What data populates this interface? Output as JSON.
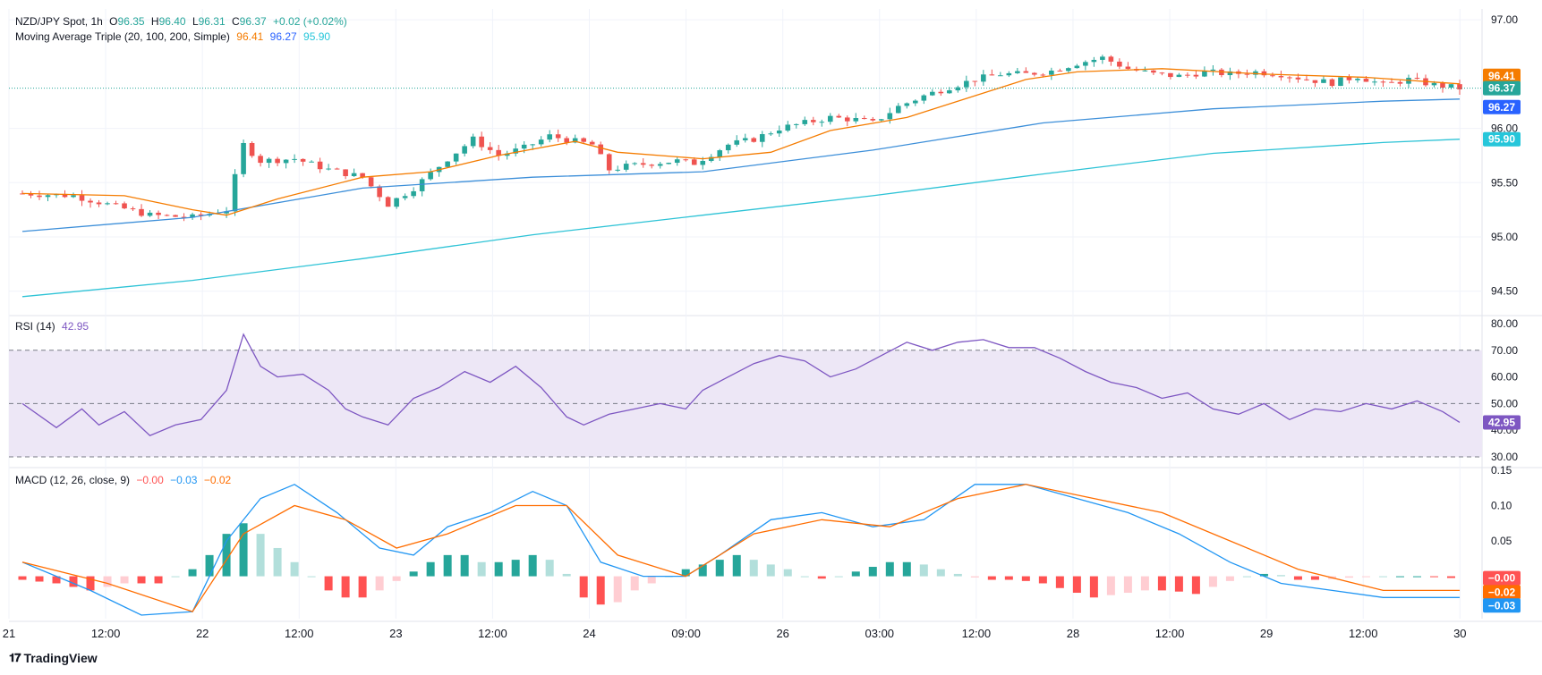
{
  "brand": {
    "name": "TradingView",
    "icon": "tradingview-logo-icon"
  },
  "colors": {
    "up": "#26a69a",
    "down": "#ef5350",
    "ma20": "#f57c00",
    "ma100": "#2962ff",
    "ma200": "#26c6da",
    "ma100_line": "#3d8fd9",
    "ma200_line": "#2ec3d6",
    "rsi": "#7e57c2",
    "rsi_band": "#ede7f6",
    "macd": "#2196f3",
    "signal": "#ff6d00",
    "hist_up_strong": "#26a69a",
    "hist_up_weak": "#b2dfdb",
    "hist_down_strong": "#ff5252",
    "hist_down_weak": "#ffcdd2",
    "grid": "#f0f3fa",
    "axis_text": "#131722"
  },
  "main_pane": {
    "legend": {
      "symbol": "NZD/JPY Spot, 1h",
      "o_label": "O",
      "o": "96.35",
      "h_label": "H",
      "h": "96.40",
      "l_label": "L",
      "l": "96.31",
      "c_label": "C",
      "c": "96.37",
      "change": "+0.02 (+0.02%)",
      "ma_title": "Moving Average Triple (20, 100, 200, Simple)",
      "ma20": "96.41",
      "ma100": "96.27",
      "ma200": "95.90"
    }
  },
  "rsi_pane": {
    "legend": {
      "title": "RSI (14)",
      "value": "42.95"
    }
  },
  "macd_pane": {
    "legend": {
      "title": "MACD (12, 26, close, 9)",
      "hist": "−0.00",
      "macd": "−0.03",
      "signal": "−0.02"
    }
  },
  "chart_data": [
    {
      "type": "candlestick",
      "title": "NZD/JPY Spot, 1h",
      "y_ticks": [
        "97.00",
        "96.00",
        "95.50",
        "95.00",
        "94.50"
      ],
      "x_ticks": [
        "21",
        "12:00",
        "22",
        "12:00",
        "23",
        "12:00",
        "24",
        "09:00",
        "26",
        "03:00",
        "12:00",
        "28",
        "12:00",
        "29",
        "12:00",
        "30"
      ],
      "ylim": [
        94.3,
        97.1
      ],
      "close_path": [
        [
          0,
          95.4
        ],
        [
          6,
          95.38
        ],
        [
          10,
          95.3
        ],
        [
          15,
          95.2
        ],
        [
          20,
          95.18
        ],
        [
          24,
          95.25
        ],
        [
          26,
          95.85
        ],
        [
          28,
          95.7
        ],
        [
          32,
          95.72
        ],
        [
          36,
          95.62
        ],
        [
          40,
          95.55
        ],
        [
          43,
          95.3
        ],
        [
          46,
          95.45
        ],
        [
          50,
          95.72
        ],
        [
          53,
          95.9
        ],
        [
          56,
          95.75
        ],
        [
          59,
          95.82
        ],
        [
          62,
          95.93
        ],
        [
          65,
          95.88
        ],
        [
          67,
          95.85
        ],
        [
          69,
          95.62
        ],
        [
          71,
          95.65
        ],
        [
          74,
          95.68
        ],
        [
          77,
          95.7
        ],
        [
          79,
          95.68
        ],
        [
          83,
          95.85
        ],
        [
          86,
          95.9
        ],
        [
          89,
          96.0
        ],
        [
          92,
          96.05
        ],
        [
          95,
          96.1
        ],
        [
          98,
          96.08
        ],
        [
          100,
          96.05
        ],
        [
          103,
          96.2
        ],
        [
          106,
          96.3
        ],
        [
          109,
          96.38
        ],
        [
          112,
          96.45
        ],
        [
          115,
          96.5
        ],
        [
          118,
          96.5
        ],
        [
          121,
          96.53
        ],
        [
          124,
          96.6
        ],
        [
          127,
          96.65
        ],
        [
          130,
          96.55
        ],
        [
          133,
          96.5
        ],
        [
          136,
          96.48
        ],
        [
          139,
          96.52
        ],
        [
          142,
          96.5
        ],
        [
          145,
          96.52
        ],
        [
          148,
          96.5
        ],
        [
          151,
          96.45
        ],
        [
          154,
          96.42
        ],
        [
          157,
          96.48
        ],
        [
          160,
          96.4
        ],
        [
          163,
          96.45
        ],
        [
          166,
          96.4
        ],
        [
          169,
          96.37
        ]
      ],
      "ma20": [
        [
          0,
          95.4
        ],
        [
          12,
          95.38
        ],
        [
          20,
          95.25
        ],
        [
          24,
          95.2
        ],
        [
          30,
          95.35
        ],
        [
          40,
          95.55
        ],
        [
          48,
          95.6
        ],
        [
          56,
          95.75
        ],
        [
          65,
          95.88
        ],
        [
          70,
          95.78
        ],
        [
          80,
          95.72
        ],
        [
          88,
          95.78
        ],
        [
          95,
          95.98
        ],
        [
          104,
          96.1
        ],
        [
          112,
          96.3
        ],
        [
          118,
          96.45
        ],
        [
          124,
          96.52
        ],
        [
          134,
          96.55
        ],
        [
          146,
          96.5
        ],
        [
          158,
          96.47
        ],
        [
          169,
          96.41
        ]
      ],
      "ma100": [
        [
          0,
          95.05
        ],
        [
          20,
          95.18
        ],
        [
          40,
          95.45
        ],
        [
          60,
          95.55
        ],
        [
          80,
          95.6
        ],
        [
          100,
          95.8
        ],
        [
          120,
          96.05
        ],
        [
          140,
          96.18
        ],
        [
          160,
          96.25
        ],
        [
          169,
          96.27
        ]
      ],
      "ma200": [
        [
          0,
          94.45
        ],
        [
          20,
          94.6
        ],
        [
          40,
          94.8
        ],
        [
          60,
          95.02
        ],
        [
          80,
          95.2
        ],
        [
          100,
          95.38
        ],
        [
          120,
          95.58
        ],
        [
          140,
          95.77
        ],
        [
          160,
          95.87
        ],
        [
          169,
          95.9
        ]
      ],
      "last_values": {
        "ma20": "96.41",
        "close": "96.37",
        "ma100": "96.27",
        "ma200": "95.90"
      }
    },
    {
      "type": "line",
      "title": "RSI (14)",
      "y_ticks": [
        "80.00",
        "70.00",
        "60.00",
        "50.00",
        "40.00",
        "30.00"
      ],
      "ylim": [
        27,
        82
      ],
      "bands": [
        30,
        50,
        70
      ],
      "values": [
        [
          0,
          50
        ],
        [
          4,
          41
        ],
        [
          7,
          48
        ],
        [
          9,
          42
        ],
        [
          12,
          47
        ],
        [
          15,
          38
        ],
        [
          18,
          42
        ],
        [
          21,
          44
        ],
        [
          24,
          55
        ],
        [
          26,
          76
        ],
        [
          28,
          64
        ],
        [
          30,
          60
        ],
        [
          33,
          61
        ],
        [
          36,
          55
        ],
        [
          38,
          48
        ],
        [
          40,
          45
        ],
        [
          43,
          42
        ],
        [
          46,
          52
        ],
        [
          49,
          56
        ],
        [
          52,
          62
        ],
        [
          55,
          58
        ],
        [
          58,
          64
        ],
        [
          61,
          56
        ],
        [
          64,
          45
        ],
        [
          66,
          42
        ],
        [
          69,
          46
        ],
        [
          72,
          48
        ],
        [
          75,
          50
        ],
        [
          78,
          48
        ],
        [
          80,
          55
        ],
        [
          83,
          60
        ],
        [
          86,
          65
        ],
        [
          89,
          68
        ],
        [
          92,
          66
        ],
        [
          95,
          60
        ],
        [
          98,
          63
        ],
        [
          101,
          68
        ],
        [
          104,
          73
        ],
        [
          107,
          70
        ],
        [
          110,
          73
        ],
        [
          113,
          74
        ],
        [
          116,
          71
        ],
        [
          119,
          71
        ],
        [
          122,
          67
        ],
        [
          125,
          62
        ],
        [
          128,
          58
        ],
        [
          131,
          56
        ],
        [
          134,
          52
        ],
        [
          137,
          54
        ],
        [
          140,
          48
        ],
        [
          143,
          46
        ],
        [
          146,
          50
        ],
        [
          149,
          44
        ],
        [
          152,
          48
        ],
        [
          155,
          47
        ],
        [
          158,
          50
        ],
        [
          161,
          48
        ],
        [
          164,
          51
        ],
        [
          167,
          47
        ],
        [
          169,
          42.95
        ]
      ]
    },
    {
      "type": "line",
      "title": "MACD (12, 26, close, 9)",
      "y_ticks": [
        "0.15",
        "0.10",
        "0.05"
      ],
      "ylim": [
        -0.06,
        0.15
      ],
      "macd": [
        [
          0,
          0.02
        ],
        [
          8,
          -0.02
        ],
        [
          14,
          -0.055
        ],
        [
          20,
          -0.05
        ],
        [
          24,
          0.05
        ],
        [
          28,
          0.11
        ],
        [
          32,
          0.13
        ],
        [
          37,
          0.09
        ],
        [
          42,
          0.04
        ],
        [
          46,
          0.03
        ],
        [
          50,
          0.07
        ],
        [
          55,
          0.09
        ],
        [
          60,
          0.12
        ],
        [
          64,
          0.1
        ],
        [
          68,
          0.02
        ],
        [
          73,
          0.0
        ],
        [
          78,
          0.0
        ],
        [
          82,
          0.03
        ],
        [
          88,
          0.08
        ],
        [
          94,
          0.09
        ],
        [
          100,
          0.07
        ],
        [
          106,
          0.08
        ],
        [
          112,
          0.13
        ],
        [
          118,
          0.13
        ],
        [
          124,
          0.11
        ],
        [
          130,
          0.09
        ],
        [
          136,
          0.06
        ],
        [
          142,
          0.02
        ],
        [
          148,
          -0.01
        ],
        [
          154,
          -0.02
        ],
        [
          160,
          -0.03
        ],
        [
          169,
          -0.03
        ]
      ],
      "signal": [
        [
          0,
          0.02
        ],
        [
          10,
          -0.01
        ],
        [
          20,
          -0.05
        ],
        [
          26,
          0.06
        ],
        [
          32,
          0.1
        ],
        [
          38,
          0.08
        ],
        [
          44,
          0.04
        ],
        [
          50,
          0.06
        ],
        [
          58,
          0.1
        ],
        [
          64,
          0.1
        ],
        [
          70,
          0.03
        ],
        [
          78,
          0.0
        ],
        [
          86,
          0.06
        ],
        [
          94,
          0.08
        ],
        [
          102,
          0.07
        ],
        [
          110,
          0.11
        ],
        [
          118,
          0.13
        ],
        [
          126,
          0.11
        ],
        [
          134,
          0.09
        ],
        [
          142,
          0.05
        ],
        [
          150,
          0.01
        ],
        [
          160,
          -0.02
        ],
        [
          169,
          -0.02
        ]
      ],
      "histogram": [
        [
          0,
          -0.005
        ],
        [
          4,
          -0.01
        ],
        [
          8,
          -0.02
        ],
        [
          12,
          -0.01
        ],
        [
          16,
          -0.01
        ],
        [
          20,
          0.01
        ],
        [
          23,
          0.04
        ],
        [
          25,
          0.08
        ],
        [
          27,
          0.07
        ],
        [
          30,
          0.04
        ],
        [
          33,
          0.01
        ],
        [
          36,
          -0.02
        ],
        [
          39,
          -0.035
        ],
        [
          42,
          -0.02
        ],
        [
          45,
          0.0
        ],
        [
          48,
          0.02
        ],
        [
          51,
          0.035
        ],
        [
          54,
          0.02
        ],
        [
          57,
          0.02
        ],
        [
          60,
          0.03
        ],
        [
          63,
          0.02
        ],
        [
          66,
          -0.03
        ],
        [
          69,
          -0.045
        ],
        [
          72,
          -0.02
        ],
        [
          75,
          -0.005
        ],
        [
          78,
          0.01
        ],
        [
          81,
          0.02
        ],
        [
          84,
          0.03
        ],
        [
          87,
          0.02
        ],
        [
          90,
          0.01
        ],
        [
          93,
          -0.005
        ],
        [
          96,
          0.0
        ],
        [
          99,
          0.01
        ],
        [
          102,
          0.02
        ],
        [
          105,
          0.02
        ],
        [
          108,
          0.01
        ],
        [
          111,
          0.0
        ],
        [
          114,
          -0.005
        ],
        [
          117,
          -0.005
        ],
        [
          120,
          -0.01
        ],
        [
          123,
          -0.02
        ],
        [
          126,
          -0.03
        ],
        [
          129,
          -0.025
        ],
        [
          132,
          -0.02
        ],
        [
          135,
          -0.02
        ],
        [
          138,
          -0.025
        ],
        [
          141,
          -0.01
        ],
        [
          144,
          0.0
        ],
        [
          147,
          0.005
        ],
        [
          150,
          -0.005
        ],
        [
          153,
          -0.005
        ],
        [
          156,
          -0.002
        ],
        [
          160,
          0.0
        ],
        [
          164,
          0.0
        ],
        [
          169,
          -0.003
        ]
      ],
      "last_values": {
        "hist": "−0.00",
        "signal": "−0.02",
        "macd": "−0.03"
      }
    }
  ]
}
